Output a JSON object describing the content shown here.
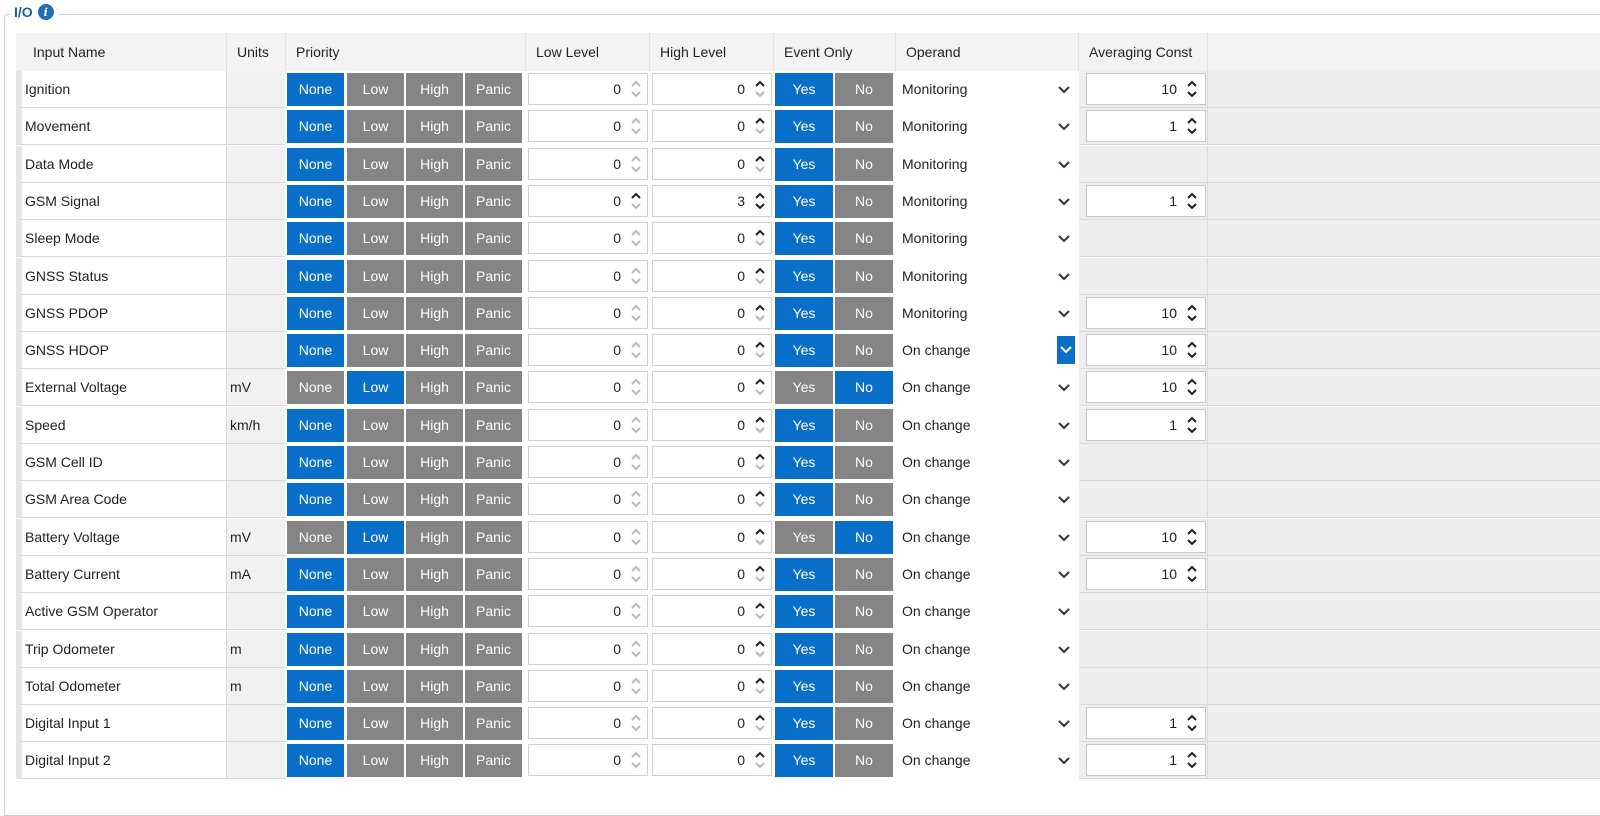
{
  "group": {
    "title": "I/O",
    "info_icon": "info-icon"
  },
  "columns": {
    "input_name": "Input Name",
    "units": "Units",
    "priority": "Priority",
    "low_level": "Low Level",
    "high_level": "High Level",
    "event_only": "Event Only",
    "operand": "Operand",
    "averaging_const": "Averaging Const"
  },
  "labels": {
    "priority_options": [
      "None",
      "Low",
      "High",
      "Panic"
    ],
    "event_options": [
      "Yes",
      "No"
    ]
  },
  "colors": {
    "selected": "#0a6fc9",
    "unselected": "#858585",
    "accent": "#1f5d8f"
  },
  "rows": [
    {
      "name": "Ignition",
      "units": "",
      "priority": "None",
      "low": "0",
      "high": "0",
      "event": "Yes",
      "operand": "Monitoring",
      "avg": "10"
    },
    {
      "name": "Movement",
      "units": "",
      "priority": "None",
      "low": "0",
      "high": "0",
      "event": "Yes",
      "operand": "Monitoring",
      "avg": "1"
    },
    {
      "name": "Data Mode",
      "units": "",
      "priority": "None",
      "low": "0",
      "high": "0",
      "event": "Yes",
      "operand": "Monitoring",
      "avg": null
    },
    {
      "name": "GSM Signal",
      "units": "",
      "priority": "None",
      "low": "0",
      "high": "3",
      "event": "Yes",
      "operand": "Monitoring",
      "avg": "1"
    },
    {
      "name": "Sleep Mode",
      "units": "",
      "priority": "None",
      "low": "0",
      "high": "0",
      "event": "Yes",
      "operand": "Monitoring",
      "avg": null
    },
    {
      "name": "GNSS Status",
      "units": "",
      "priority": "None",
      "low": "0",
      "high": "0",
      "event": "Yes",
      "operand": "Monitoring",
      "avg": null
    },
    {
      "name": "GNSS PDOP",
      "units": "",
      "priority": "None",
      "low": "0",
      "high": "0",
      "event": "Yes",
      "operand": "Monitoring",
      "avg": "10"
    },
    {
      "name": "GNSS HDOP",
      "units": "",
      "priority": "None",
      "low": "0",
      "high": "0",
      "event": "Yes",
      "operand": "On change",
      "avg": "10",
      "focused": true
    },
    {
      "name": "External Voltage",
      "units": "mV",
      "priority": "Low",
      "low": "0",
      "high": "0",
      "event": "No",
      "operand": "On change",
      "avg": "10"
    },
    {
      "name": "Speed",
      "units": "km/h",
      "priority": "None",
      "low": "0",
      "high": "0",
      "event": "Yes",
      "operand": "On change",
      "avg": "1"
    },
    {
      "name": "GSM Cell ID",
      "units": "",
      "priority": "None",
      "low": "0",
      "high": "0",
      "event": "Yes",
      "operand": "On change",
      "avg": null
    },
    {
      "name": "GSM Area Code",
      "units": "",
      "priority": "None",
      "low": "0",
      "high": "0",
      "event": "Yes",
      "operand": "On change",
      "avg": null
    },
    {
      "name": "Battery Voltage",
      "units": "mV",
      "priority": "Low",
      "low": "0",
      "high": "0",
      "event": "No",
      "operand": "On change",
      "avg": "10"
    },
    {
      "name": "Battery Current",
      "units": "mA",
      "priority": "None",
      "low": "0",
      "high": "0",
      "event": "Yes",
      "operand": "On change",
      "avg": "10"
    },
    {
      "name": "Active GSM Operator",
      "units": "",
      "priority": "None",
      "low": "0",
      "high": "0",
      "event": "Yes",
      "operand": "On change",
      "avg": null
    },
    {
      "name": "Trip Odometer",
      "units": "m",
      "priority": "None",
      "low": "0",
      "high": "0",
      "event": "Yes",
      "operand": "On change",
      "avg": null
    },
    {
      "name": "Total Odometer",
      "units": "m",
      "priority": "None",
      "low": "0",
      "high": "0",
      "event": "Yes",
      "operand": "On change",
      "avg": null
    },
    {
      "name": "Digital Input 1",
      "units": "",
      "priority": "None",
      "low": "0",
      "high": "0",
      "event": "Yes",
      "operand": "On change",
      "avg": "1"
    },
    {
      "name": "Digital Input 2",
      "units": "",
      "priority": "None",
      "low": "0",
      "high": "0",
      "event": "Yes",
      "operand": "On change",
      "avg": "1"
    }
  ]
}
